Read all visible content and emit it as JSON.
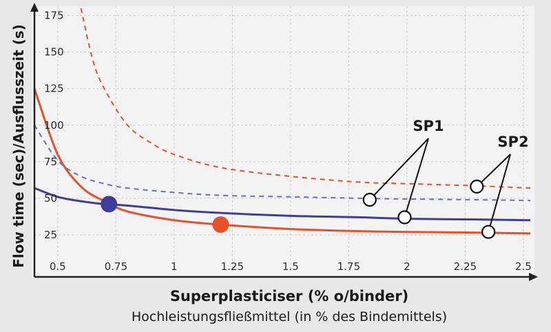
{
  "chart_data": {
    "type": "line",
    "xlabel": "Superplasticiser (% o/binder)",
    "xlabel_sub": "Hochleistungsfließmittel (in % des Bindemittels)",
    "ylabel": "Flow time (sec)/Ausflusszeit (s)",
    "x_ticks": [
      "0.5",
      "0.75",
      "1",
      "1.25",
      "1.5",
      "1.75",
      "2",
      "2.25",
      "2.5"
    ],
    "y_ticks": [
      "25",
      "50",
      "75",
      "100",
      "125",
      "150",
      "175"
    ],
    "xlim": [
      0.4,
      2.53
    ],
    "ylim": [
      0,
      180
    ],
    "grid": true,
    "series": [
      {
        "name": "SP1",
        "style": "solid",
        "color": "#e8502a",
        "x": [
          0.4,
          0.5,
          0.6,
          0.7,
          0.8,
          1.0,
          1.2,
          1.5,
          1.8,
          2.0,
          2.3,
          2.53
        ],
        "y": [
          125,
          80,
          58,
          48,
          41,
          35,
          32,
          29,
          27.5,
          27,
          26.5,
          26
        ]
      },
      {
        "name": "SP2",
        "style": "solid",
        "color": "#3f3d9a",
        "x": [
          0.4,
          0.5,
          0.6,
          0.7,
          0.8,
          1.0,
          1.2,
          1.5,
          1.8,
          2.0,
          2.3,
          2.53
        ],
        "y": [
          57,
          51,
          48,
          46,
          45,
          42,
          40,
          38,
          37,
          36,
          35.5,
          35
        ]
      },
      {
        "name": "SP1",
        "style": "dashed",
        "color": "#e8502a",
        "x": [
          0.6,
          0.65,
          0.7,
          0.8,
          0.9,
          1.0,
          1.2,
          1.5,
          1.8,
          2.0,
          2.3,
          2.53
        ],
        "y": [
          180,
          145,
          125,
          100,
          88,
          80,
          71,
          65,
          61,
          60,
          58.5,
          57
        ]
      },
      {
        "name": "SP2",
        "style": "dashed",
        "color": "#6a6bc9",
        "x": [
          0.4,
          0.5,
          0.6,
          0.7,
          0.8,
          1.0,
          1.2,
          1.5,
          1.8,
          2.0,
          2.3,
          2.53
        ],
        "y": [
          100,
          76,
          65,
          60,
          57,
          54,
          52,
          51,
          50,
          49.5,
          49,
          48.5
        ]
      }
    ],
    "highlight_points": [
      {
        "x": 0.72,
        "y": 46,
        "color": "#3f3d9a"
      },
      {
        "x": 1.2,
        "y": 32,
        "color": "#e8502a"
      }
    ],
    "annotations": [
      {
        "label": "SP1",
        "pointers": [
          [
            1.84,
            49
          ],
          [
            1.99,
            37
          ]
        ]
      },
      {
        "label": "SP2",
        "pointers": [
          [
            2.3,
            58
          ],
          [
            2.35,
            27
          ]
        ]
      }
    ]
  }
}
